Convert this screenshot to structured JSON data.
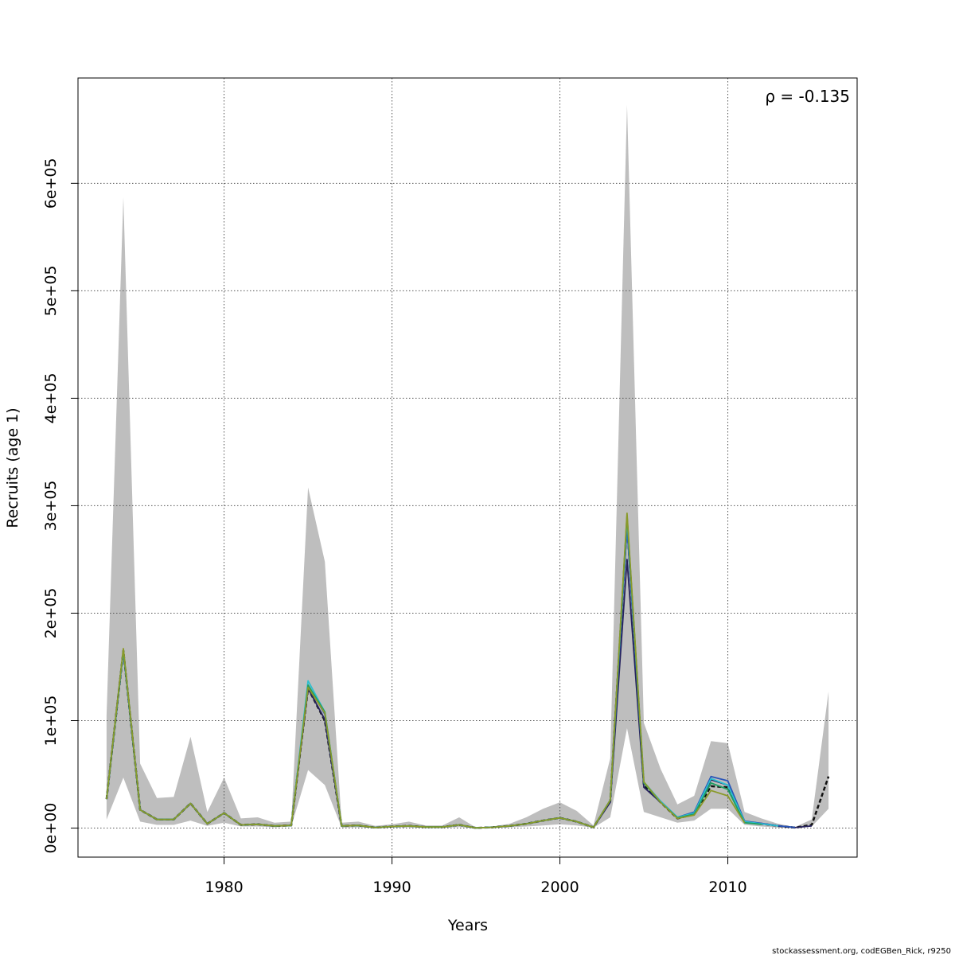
{
  "chart_data": {
    "type": "line",
    "title": "",
    "xlabel": "Years",
    "ylabel": "Recruits (age 1)",
    "annotation": "ρ = -0.135",
    "footer": "stockassessment.org, codEGBen_Rick, r9250",
    "xlim": [
      1971.3,
      2017.7
    ],
    "ylim": [
      -27000,
      698000
    ],
    "x_ticks": [
      1980,
      1990,
      2000,
      2010
    ],
    "x_tick_labels": [
      "1980",
      "1990",
      "2000",
      "2010"
    ],
    "y_ticks": [
      0,
      100000,
      200000,
      300000,
      400000,
      500000,
      600000
    ],
    "y_tick_labels": [
      "0e+00",
      "1e+05",
      "2e+05",
      "3e+05",
      "4e+05",
      "5e+05",
      "6e+05"
    ],
    "grid": true,
    "colors": {
      "band": "#bebebe",
      "grid": "#555555",
      "base": "#111111",
      "peel1": "#26225e",
      "peel2": "#2a55b8",
      "peel3": "#2bbfd0",
      "peel4": "#1f9e63",
      "peel5": "#8a9a2a"
    },
    "confidence_band": {
      "years": [
        1973,
        1974,
        1975,
        1976,
        1977,
        1978,
        1979,
        1980,
        1981,
        1982,
        1983,
        1984,
        1985,
        1986,
        1987,
        1988,
        1989,
        1990,
        1991,
        1992,
        1993,
        1994,
        1995,
        1996,
        1997,
        1998,
        1999,
        2000,
        2001,
        2002,
        2003,
        2004,
        2005,
        2006,
        2007,
        2008,
        2009,
        2010,
        2011,
        2012,
        2013,
        2014,
        2015,
        2016
      ],
      "lower": [
        8000,
        47000,
        6000,
        3000,
        3000,
        7000,
        2000,
        5000,
        1500,
        1500,
        800,
        1500,
        54000,
        40000,
        500,
        800,
        300,
        500,
        800,
        300,
        300,
        1000,
        100,
        300,
        800,
        1500,
        2500,
        3500,
        2500,
        300,
        10000,
        93000,
        15000,
        10000,
        5000,
        7000,
        18000,
        18000,
        3000,
        1500,
        500,
        300,
        1500,
        18000
      ],
      "upper": [
        105000,
        587000,
        60000,
        28000,
        29000,
        85000,
        15000,
        47000,
        9000,
        10000,
        5000,
        6000,
        317000,
        248000,
        5000,
        6000,
        2000,
        3500,
        6000,
        2500,
        2500,
        10000,
        500,
        1500,
        4000,
        10000,
        18000,
        24000,
        16000,
        2500,
        65000,
        673000,
        98000,
        55000,
        22000,
        30000,
        81000,
        79000,
        15000,
        9000,
        4000,
        1000,
        8000,
        127000
      ]
    },
    "series": [
      {
        "x": [
          1973,
          1974,
          1975,
          1976,
          1977,
          1978,
          1979,
          1980,
          1981,
          1982,
          1983,
          1984,
          1985,
          1986,
          1987,
          1988,
          1989,
          1990,
          1991,
          1992,
          1993,
          1994,
          1995,
          1996,
          1997,
          1998,
          1999,
          2000,
          2001,
          2002,
          2003,
          2004,
          2005,
          2006,
          2007,
          2008,
          2009,
          2010,
          2011,
          2012,
          2013,
          2014,
          2015,
          2016
        ],
        "values": [
          27000,
          165000,
          17000,
          8000,
          8000,
          23000,
          4000,
          14000,
          3000,
          3500,
          2000,
          2500,
          130000,
          100000,
          2000,
          2500,
          500,
          1500,
          2000,
          1000,
          1000,
          3000,
          200,
          800,
          2000,
          4000,
          7000,
          9500,
          6000,
          700,
          25000,
          285000,
          40000,
          24000,
          9000,
          13000,
          39000,
          38000,
          6000,
          4000,
          2000,
          500,
          3000,
          48000
        ],
        "dash": true
      },
      {
        "x": [
          1973,
          1974,
          1975,
          1976,
          1977,
          1978,
          1979,
          1980,
          1981,
          1982,
          1983,
          1984,
          1985,
          1986,
          1987,
          1988,
          1989,
          1990,
          1991,
          1992,
          1993,
          1994,
          1995,
          1996,
          1997,
          1998,
          1999,
          2000,
          2001,
          2002,
          2003,
          2004,
          2005,
          2006,
          2007,
          2008,
          2009,
          2010,
          2011,
          2012,
          2013,
          2014,
          2015
        ],
        "values": [
          27000,
          165000,
          17000,
          8000,
          8000,
          23000,
          4000,
          14000,
          3000,
          3500,
          2000,
          2500,
          130000,
          101000,
          2000,
          2500,
          500,
          1500,
          2000,
          1000,
          1000,
          3000,
          200,
          800,
          2000,
          4000,
          7000,
          9500,
          6000,
          700,
          24000,
          250000,
          38000,
          24000,
          9500,
          14000,
          45000,
          40000,
          6000,
          4000,
          2000,
          500,
          2000
        ],
        "dash": false
      },
      {
        "x": [
          1973,
          1974,
          1975,
          1976,
          1977,
          1978,
          1979,
          1980,
          1981,
          1982,
          1983,
          1984,
          1985,
          1986,
          1987,
          1988,
          1989,
          1990,
          1991,
          1992,
          1993,
          1994,
          1995,
          1996,
          1997,
          1998,
          1999,
          2000,
          2001,
          2002,
          2003,
          2004,
          2005,
          2006,
          2007,
          2008,
          2009,
          2010,
          2011,
          2012,
          2013,
          2014
        ],
        "values": [
          27000,
          165000,
          17000,
          8000,
          8000,
          23000,
          4000,
          14000,
          3000,
          3500,
          2000,
          2500,
          133000,
          106000,
          2000,
          2500,
          500,
          1500,
          2000,
          1000,
          1000,
          3000,
          200,
          800,
          2000,
          4000,
          7000,
          9500,
          6000,
          700,
          26000,
          280000,
          42000,
          25000,
          10000,
          15000,
          48000,
          44000,
          6500,
          4500,
          2200,
          600
        ],
        "dash": false
      },
      {
        "x": [
          1973,
          1974,
          1975,
          1976,
          1977,
          1978,
          1979,
          1980,
          1981,
          1982,
          1983,
          1984,
          1985,
          1986,
          1987,
          1988,
          1989,
          1990,
          1991,
          1992,
          1993,
          1994,
          1995,
          1996,
          1997,
          1998,
          1999,
          2000,
          2001,
          2002,
          2003,
          2004,
          2005,
          2006,
          2007,
          2008,
          2009,
          2010,
          2011,
          2012,
          2013
        ],
        "values": [
          27000,
          165000,
          17000,
          8000,
          8000,
          23000,
          4000,
          14000,
          3000,
          3500,
          2000,
          2500,
          137000,
          108000,
          2000,
          2500,
          500,
          1500,
          2000,
          1000,
          1000,
          3000,
          200,
          800,
          2000,
          4000,
          7000,
          9500,
          6000,
          700,
          26000,
          288000,
          43000,
          25000,
          10000,
          14000,
          46000,
          40000,
          6000,
          4000,
          2000
        ],
        "dash": false
      },
      {
        "x": [
          1973,
          1974,
          1975,
          1976,
          1977,
          1978,
          1979,
          1980,
          1981,
          1982,
          1983,
          1984,
          1985,
          1986,
          1987,
          1988,
          1989,
          1990,
          1991,
          1992,
          1993,
          1994,
          1995,
          1996,
          1997,
          1998,
          1999,
          2000,
          2001,
          2002,
          2003,
          2004,
          2005,
          2006,
          2007,
          2008,
          2009,
          2010,
          2011,
          2012
        ],
        "values": [
          27000,
          166000,
          17000,
          8000,
          8000,
          23000,
          4000,
          14000,
          3000,
          3500,
          2000,
          2500,
          133000,
          108000,
          2000,
          2500,
          500,
          1500,
          2000,
          1000,
          1000,
          3000,
          200,
          800,
          2000,
          4000,
          7000,
          9500,
          6000,
          700,
          26000,
          291000,
          42000,
          24000,
          9500,
          13000,
          42000,
          36000,
          5000,
          3500
        ],
        "dash": false
      },
      {
        "x": [
          1973,
          1974,
          1975,
          1976,
          1977,
          1978,
          1979,
          1980,
          1981,
          1982,
          1983,
          1984,
          1985,
          1986,
          1987,
          1988,
          1989,
          1990,
          1991,
          1992,
          1993,
          1994,
          1995,
          1996,
          1997,
          1998,
          1999,
          2000,
          2001,
          2002,
          2003,
          2004,
          2005,
          2006,
          2007,
          2008,
          2009,
          2010,
          2011
        ],
        "values": [
          27000,
          167000,
          17000,
          8000,
          8000,
          23000,
          4000,
          14000,
          3000,
          3500,
          2000,
          2500,
          131000,
          107000,
          2000,
          2500,
          500,
          1500,
          2000,
          1000,
          1000,
          3000,
          200,
          800,
          2000,
          4000,
          7000,
          9500,
          6000,
          700,
          26000,
          293000,
          43000,
          24000,
          9000,
          12000,
          35000,
          30000,
          5000
        ],
        "dash": false
      }
    ]
  }
}
